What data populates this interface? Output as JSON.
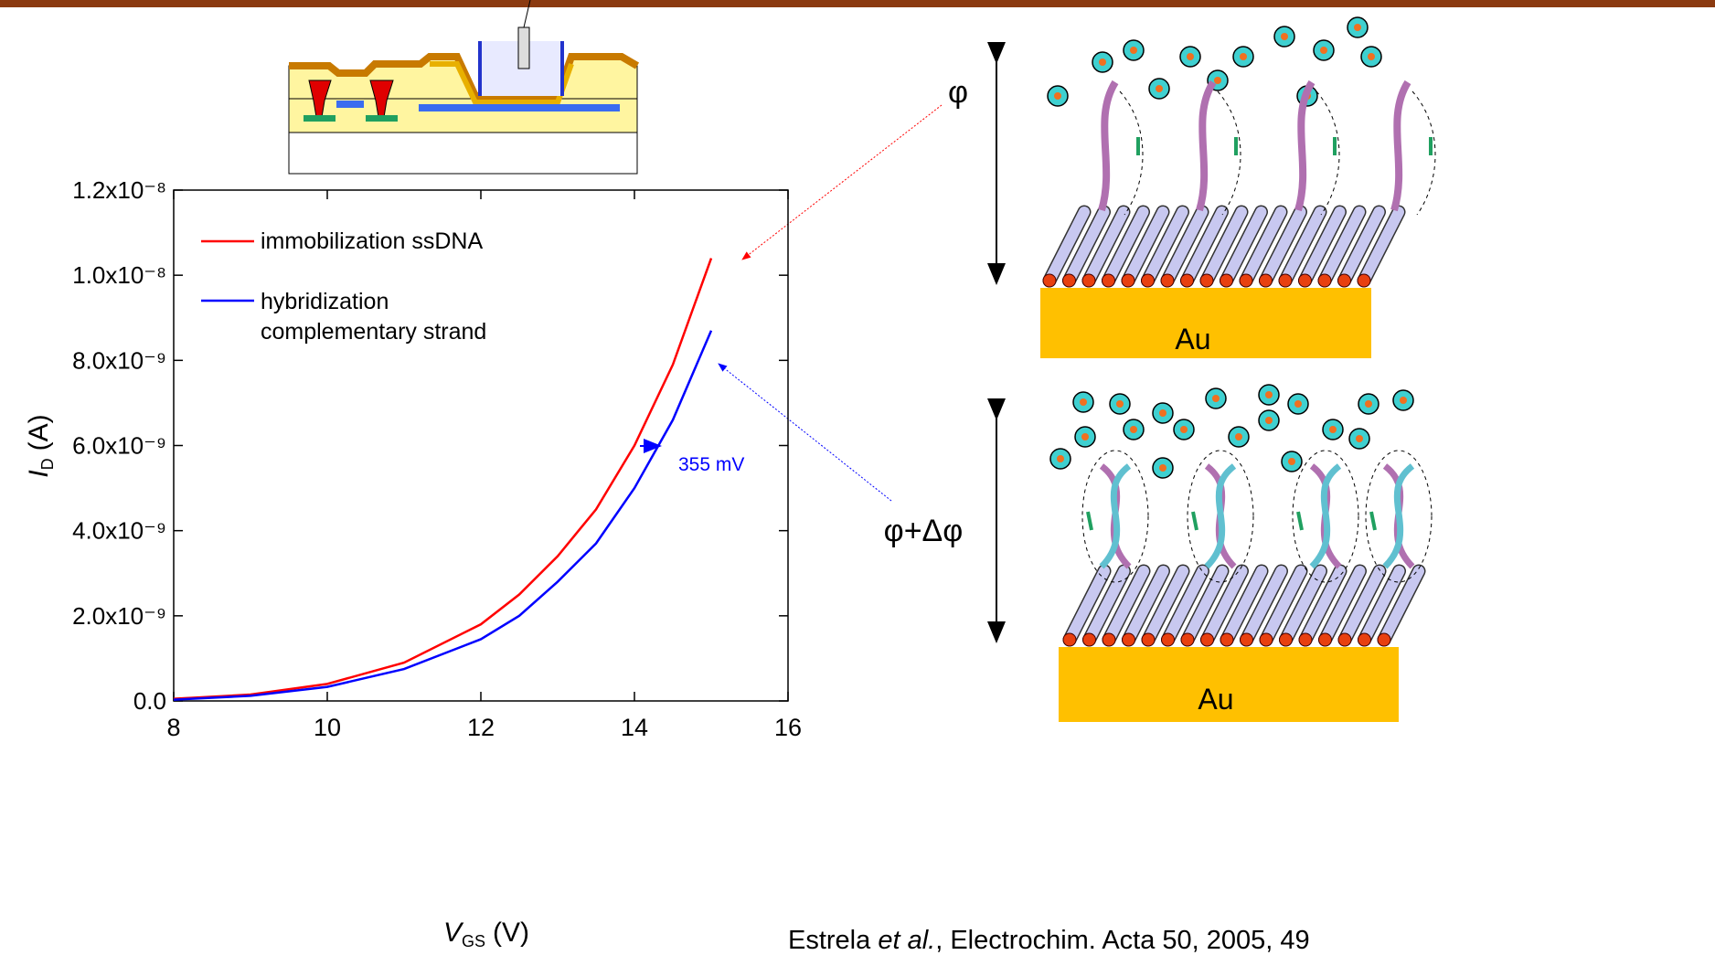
{
  "chart_data": {
    "type": "line",
    "x_label": {
      "symbol": "V",
      "subscript": "GS",
      "unit": "(V)"
    },
    "y_label": {
      "symbol": "I",
      "subscript": "D",
      "unit": "(A)"
    },
    "x": [
      8,
      9,
      10,
      11,
      12,
      12.5,
      13,
      13.5,
      14,
      14.5,
      15
    ],
    "series": [
      {
        "name": "immobilization ssDNA",
        "color": "#ff0000",
        "values": [
          5e-11,
          1.5e-10,
          4e-10,
          9e-10,
          1.8e-09,
          2.5e-09,
          3.4e-09,
          4.5e-09,
          6e-09,
          7.9e-09,
          1.04e-08
        ]
      },
      {
        "name": "hybridization complementary strand",
        "color": "#0000ff",
        "values": [
          3e-11,
          1.2e-10,
          3.3e-10,
          7.5e-10,
          1.45e-09,
          2e-09,
          2.8e-09,
          3.7e-09,
          5e-09,
          6.6e-09,
          8.7e-09
        ]
      }
    ],
    "xlim": [
      8,
      16
    ],
    "xticks": [
      8,
      10,
      12,
      14,
      16
    ],
    "ylim": [
      0,
      1.2e-08
    ],
    "yticks": [
      {
        "value": 0,
        "label": "0.0"
      },
      {
        "value": 2e-09,
        "label": "2.0x10⁻⁹"
      },
      {
        "value": 4e-09,
        "label": "4.0x10⁻⁹"
      },
      {
        "value": 6e-09,
        "label": "6.0x10⁻⁹"
      },
      {
        "value": 8e-09,
        "label": "8.0x10⁻⁹"
      },
      {
        "value": 1e-08,
        "label": "1.0x10⁻⁸"
      },
      {
        "value": 1.2e-08,
        "label": "1.2x10⁻⁸"
      }
    ],
    "annotation": "355 mV",
    "legend": "upper left"
  },
  "diagram": {
    "phi": "φ",
    "phi_delta": "φ+Δφ",
    "top_substrate": "Au",
    "bottom_substrate": "Au"
  },
  "citation": {
    "author": "Estrela",
    "etal": "et al.",
    "rest": ", Electrochim. Acta 50, 2005, 49"
  }
}
